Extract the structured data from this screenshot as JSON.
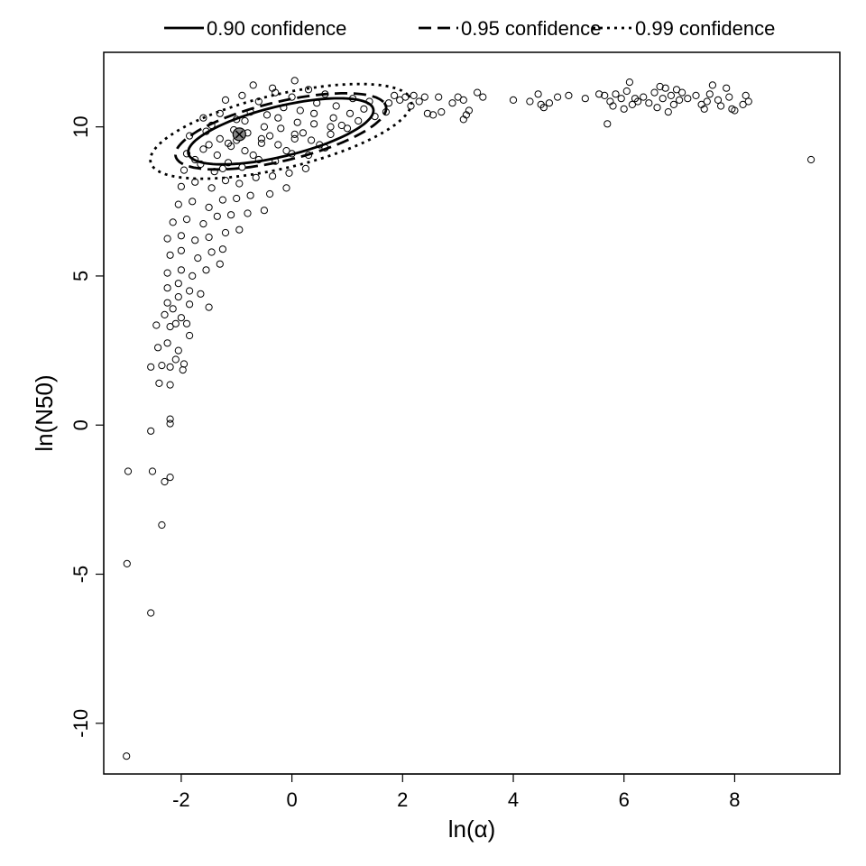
{
  "chart_data": {
    "type": "scatter",
    "xlabel": "ln(α)",
    "ylabel": "ln(N50)",
    "xlim": [
      -3.4,
      9.9
    ],
    "ylim": [
      -11.7,
      12.5
    ],
    "x_ticks": [
      -2,
      0,
      2,
      4,
      6,
      8
    ],
    "y_ticks": [
      -10,
      -5,
      0,
      5,
      10
    ],
    "x_tick_labels": [
      "-2",
      "0",
      "2",
      "4",
      "6",
      "8"
    ],
    "y_tick_labels": [
      "-10",
      "-5",
      "0",
      "5",
      "10"
    ],
    "grid": false,
    "legend": {
      "placement": "top (outside plot area)",
      "entries": [
        {
          "label": "0.90 confidence",
          "style": "solid"
        },
        {
          "label": "0.95 confidence",
          "style": "dashed"
        },
        {
          "label": "0.99 confidence",
          "style": "dotted"
        }
      ]
    },
    "point_estimate": {
      "x": -0.95,
      "y": 9.75
    },
    "ellipses": [
      {
        "level": 0.9,
        "center": [
          -0.2,
          9.85
        ],
        "a": 1.85,
        "b": 0.78,
        "angle_deg": 28,
        "style": "solid"
      },
      {
        "level": 0.95,
        "center": [
          -0.2,
          9.85
        ],
        "a": 2.1,
        "b": 0.92,
        "angle_deg": 28,
        "style": "dashed"
      },
      {
        "level": 0.99,
        "center": [
          -0.2,
          9.85
        ],
        "a": 2.6,
        "b": 1.15,
        "angle_deg": 28,
        "style": "dotted"
      }
    ],
    "scatter_points": [
      [
        -2.99,
        -11.1
      ],
      [
        -2.98,
        -4.65
      ],
      [
        -2.96,
        -1.55
      ],
      [
        -2.55,
        -6.3
      ],
      [
        -2.35,
        -3.35
      ],
      [
        -2.3,
        -1.9
      ],
      [
        -2.2,
        -1.75
      ],
      [
        -2.52,
        -1.55
      ],
      [
        -2.55,
        -0.2
      ],
      [
        -2.2,
        0.2
      ],
      [
        -2.2,
        0.05
      ],
      [
        -2.4,
        1.4
      ],
      [
        -2.2,
        1.35
      ],
      [
        -2.55,
        1.95
      ],
      [
        -2.35,
        2.0
      ],
      [
        -2.2,
        1.95
      ],
      [
        -2.42,
        2.6
      ],
      [
        -2.25,
        2.75
      ],
      [
        -2.1,
        2.2
      ],
      [
        -1.95,
        2.05
      ],
      [
        -1.97,
        1.85
      ],
      [
        -2.05,
        2.5
      ],
      [
        -2.45,
        3.35
      ],
      [
        -2.2,
        3.3
      ],
      [
        -2.1,
        3.4
      ],
      [
        -1.85,
        3.0
      ],
      [
        -2.3,
        3.7
      ],
      [
        -2.15,
        3.9
      ],
      [
        -2.0,
        3.6
      ],
      [
        -1.9,
        3.4
      ],
      [
        -2.25,
        4.1
      ],
      [
        -2.05,
        4.3
      ],
      [
        -1.85,
        4.05
      ],
      [
        -1.5,
        3.95
      ],
      [
        -2.25,
        4.6
      ],
      [
        -2.05,
        4.75
      ],
      [
        -1.85,
        4.5
      ],
      [
        -1.65,
        4.4
      ],
      [
        -2.25,
        5.1
      ],
      [
        -2.0,
        5.2
      ],
      [
        -1.8,
        5.0
      ],
      [
        -1.55,
        5.2
      ],
      [
        -1.3,
        5.4
      ],
      [
        -2.2,
        5.7
      ],
      [
        -2.0,
        5.85
      ],
      [
        -1.7,
        5.6
      ],
      [
        -1.45,
        5.8
      ],
      [
        -1.25,
        5.9
      ],
      [
        -2.25,
        6.25
      ],
      [
        -2.0,
        6.35
      ],
      [
        -1.75,
        6.2
      ],
      [
        -1.5,
        6.3
      ],
      [
        -1.2,
        6.45
      ],
      [
        -0.95,
        6.55
      ],
      [
        -2.15,
        6.8
      ],
      [
        -1.9,
        6.9
      ],
      [
        -1.6,
        6.75
      ],
      [
        -1.35,
        7.0
      ],
      [
        -1.1,
        7.05
      ],
      [
        -0.8,
        7.1
      ],
      [
        -0.5,
        7.2
      ],
      [
        -2.05,
        7.4
      ],
      [
        -1.8,
        7.5
      ],
      [
        -1.5,
        7.3
      ],
      [
        -1.25,
        7.55
      ],
      [
        -1.0,
        7.6
      ],
      [
        -0.75,
        7.7
      ],
      [
        -0.4,
        7.75
      ],
      [
        -0.1,
        7.95
      ],
      [
        -2.0,
        8.0
      ],
      [
        -1.75,
        8.15
      ],
      [
        -1.45,
        7.95
      ],
      [
        -1.2,
        8.2
      ],
      [
        -0.95,
        8.1
      ],
      [
        -0.65,
        8.3
      ],
      [
        -0.35,
        8.35
      ],
      [
        -0.05,
        8.45
      ],
      [
        0.25,
        8.6
      ],
      [
        -1.95,
        8.55
      ],
      [
        -1.65,
        8.75
      ],
      [
        -1.4,
        8.5
      ],
      [
        -1.15,
        8.8
      ],
      [
        -0.9,
        8.65
      ],
      [
        -0.6,
        8.9
      ],
      [
        -0.3,
        8.85
      ],
      [
        0.0,
        9.1
      ],
      [
        0.3,
        9.05
      ],
      [
        0.6,
        9.3
      ],
      [
        -1.9,
        9.1
      ],
      [
        -1.6,
        9.25
      ],
      [
        -1.35,
        9.05
      ],
      [
        -1.1,
        9.35
      ],
      [
        -0.85,
        9.2
      ],
      [
        -0.55,
        9.45
      ],
      [
        -0.25,
        9.4
      ],
      [
        0.05,
        9.6
      ],
      [
        0.35,
        9.55
      ],
      [
        0.7,
        9.75
      ],
      [
        1.0,
        9.95
      ],
      [
        -1.85,
        9.7
      ],
      [
        -1.55,
        9.85
      ],
      [
        -1.3,
        9.6
      ],
      [
        -1.05,
        9.9
      ],
      [
        -0.8,
        9.8
      ],
      [
        -0.5,
        10.0
      ],
      [
        -0.2,
        9.95
      ],
      [
        0.1,
        10.15
      ],
      [
        0.4,
        10.1
      ],
      [
        0.75,
        10.3
      ],
      [
        1.05,
        10.45
      ],
      [
        1.3,
        10.6
      ],
      [
        -1.6,
        10.3
      ],
      [
        -1.3,
        10.45
      ],
      [
        -1.0,
        10.25
      ],
      [
        -0.75,
        10.5
      ],
      [
        -0.45,
        10.4
      ],
      [
        -0.15,
        10.65
      ],
      [
        0.15,
        10.55
      ],
      [
        0.45,
        10.8
      ],
      [
        0.8,
        10.7
      ],
      [
        1.1,
        10.95
      ],
      [
        1.4,
        10.85
      ],
      [
        -1.2,
        10.9
      ],
      [
        -0.9,
        11.05
      ],
      [
        -0.6,
        10.85
      ],
      [
        -0.3,
        11.15
      ],
      [
        0.0,
        11.0
      ],
      [
        0.3,
        11.25
      ],
      [
        0.6,
        11.1
      ],
      [
        -0.7,
        11.4
      ],
      [
        -0.35,
        11.3
      ],
      [
        0.05,
        11.55
      ],
      [
        -1.75,
        8.9
      ],
      [
        -1.5,
        9.4
      ],
      [
        -1.25,
        8.6
      ],
      [
        -1.0,
        9.55
      ],
      [
        -0.7,
        9.05
      ],
      [
        -0.4,
        9.7
      ],
      [
        -0.1,
        9.2
      ],
      [
        0.2,
        9.8
      ],
      [
        0.5,
        9.4
      ],
      [
        0.9,
        10.05
      ],
      [
        -1.45,
        10.05
      ],
      [
        -1.15,
        9.45
      ],
      [
        -0.85,
        10.2
      ],
      [
        -0.55,
        9.6
      ],
      [
        -0.25,
        10.3
      ],
      [
        0.05,
        9.75
      ],
      [
        0.4,
        10.45
      ],
      [
        0.7,
        10.0
      ],
      [
        1.2,
        10.2
      ],
      [
        1.5,
        10.35
      ],
      [
        1.7,
        10.5
      ],
      [
        1.75,
        10.8
      ],
      [
        1.85,
        11.05
      ],
      [
        1.95,
        10.9
      ],
      [
        2.05,
        11.0
      ],
      [
        2.15,
        10.7
      ],
      [
        2.2,
        11.05
      ],
      [
        2.3,
        10.85
      ],
      [
        2.4,
        11.0
      ],
      [
        2.45,
        10.45
      ],
      [
        2.55,
        10.4
      ],
      [
        2.65,
        11.0
      ],
      [
        2.7,
        10.5
      ],
      [
        2.9,
        10.8
      ],
      [
        3.0,
        11.0
      ],
      [
        3.1,
        10.9
      ],
      [
        3.1,
        10.25
      ],
      [
        3.15,
        10.4
      ],
      [
        3.2,
        10.55
      ],
      [
        3.35,
        11.15
      ],
      [
        3.45,
        11.0
      ],
      [
        4.0,
        10.9
      ],
      [
        4.3,
        10.85
      ],
      [
        4.45,
        11.1
      ],
      [
        4.5,
        10.75
      ],
      [
        4.55,
        10.65
      ],
      [
        4.65,
        10.8
      ],
      [
        4.8,
        11.0
      ],
      [
        5.0,
        11.05
      ],
      [
        5.3,
        10.95
      ],
      [
        5.55,
        11.1
      ],
      [
        5.65,
        11.05
      ],
      [
        5.7,
        10.1
      ],
      [
        5.75,
        10.85
      ],
      [
        5.8,
        10.7
      ],
      [
        5.85,
        11.1
      ],
      [
        5.95,
        10.95
      ],
      [
        6.0,
        10.6
      ],
      [
        6.05,
        11.2
      ],
      [
        6.1,
        11.5
      ],
      [
        6.15,
        10.75
      ],
      [
        6.2,
        10.95
      ],
      [
        6.25,
        10.85
      ],
      [
        6.35,
        11.0
      ],
      [
        6.45,
        10.8
      ],
      [
        6.55,
        11.15
      ],
      [
        6.6,
        10.65
      ],
      [
        6.65,
        11.35
      ],
      [
        6.7,
        10.95
      ],
      [
        6.75,
        11.3
      ],
      [
        6.8,
        10.5
      ],
      [
        6.85,
        11.05
      ],
      [
        6.9,
        10.75
      ],
      [
        6.95,
        11.25
      ],
      [
        7.0,
        10.9
      ],
      [
        7.05,
        11.15
      ],
      [
        7.15,
        10.95
      ],
      [
        7.3,
        11.05
      ],
      [
        7.4,
        10.75
      ],
      [
        7.45,
        10.6
      ],
      [
        7.5,
        10.85
      ],
      [
        7.55,
        11.1
      ],
      [
        7.6,
        11.4
      ],
      [
        7.7,
        10.9
      ],
      [
        7.75,
        10.7
      ],
      [
        7.85,
        11.3
      ],
      [
        7.9,
        11.0
      ],
      [
        7.95,
        10.6
      ],
      [
        8.0,
        10.55
      ],
      [
        8.15,
        10.75
      ],
      [
        8.2,
        11.05
      ],
      [
        8.25,
        10.85
      ],
      [
        9.38,
        8.9
      ]
    ]
  }
}
